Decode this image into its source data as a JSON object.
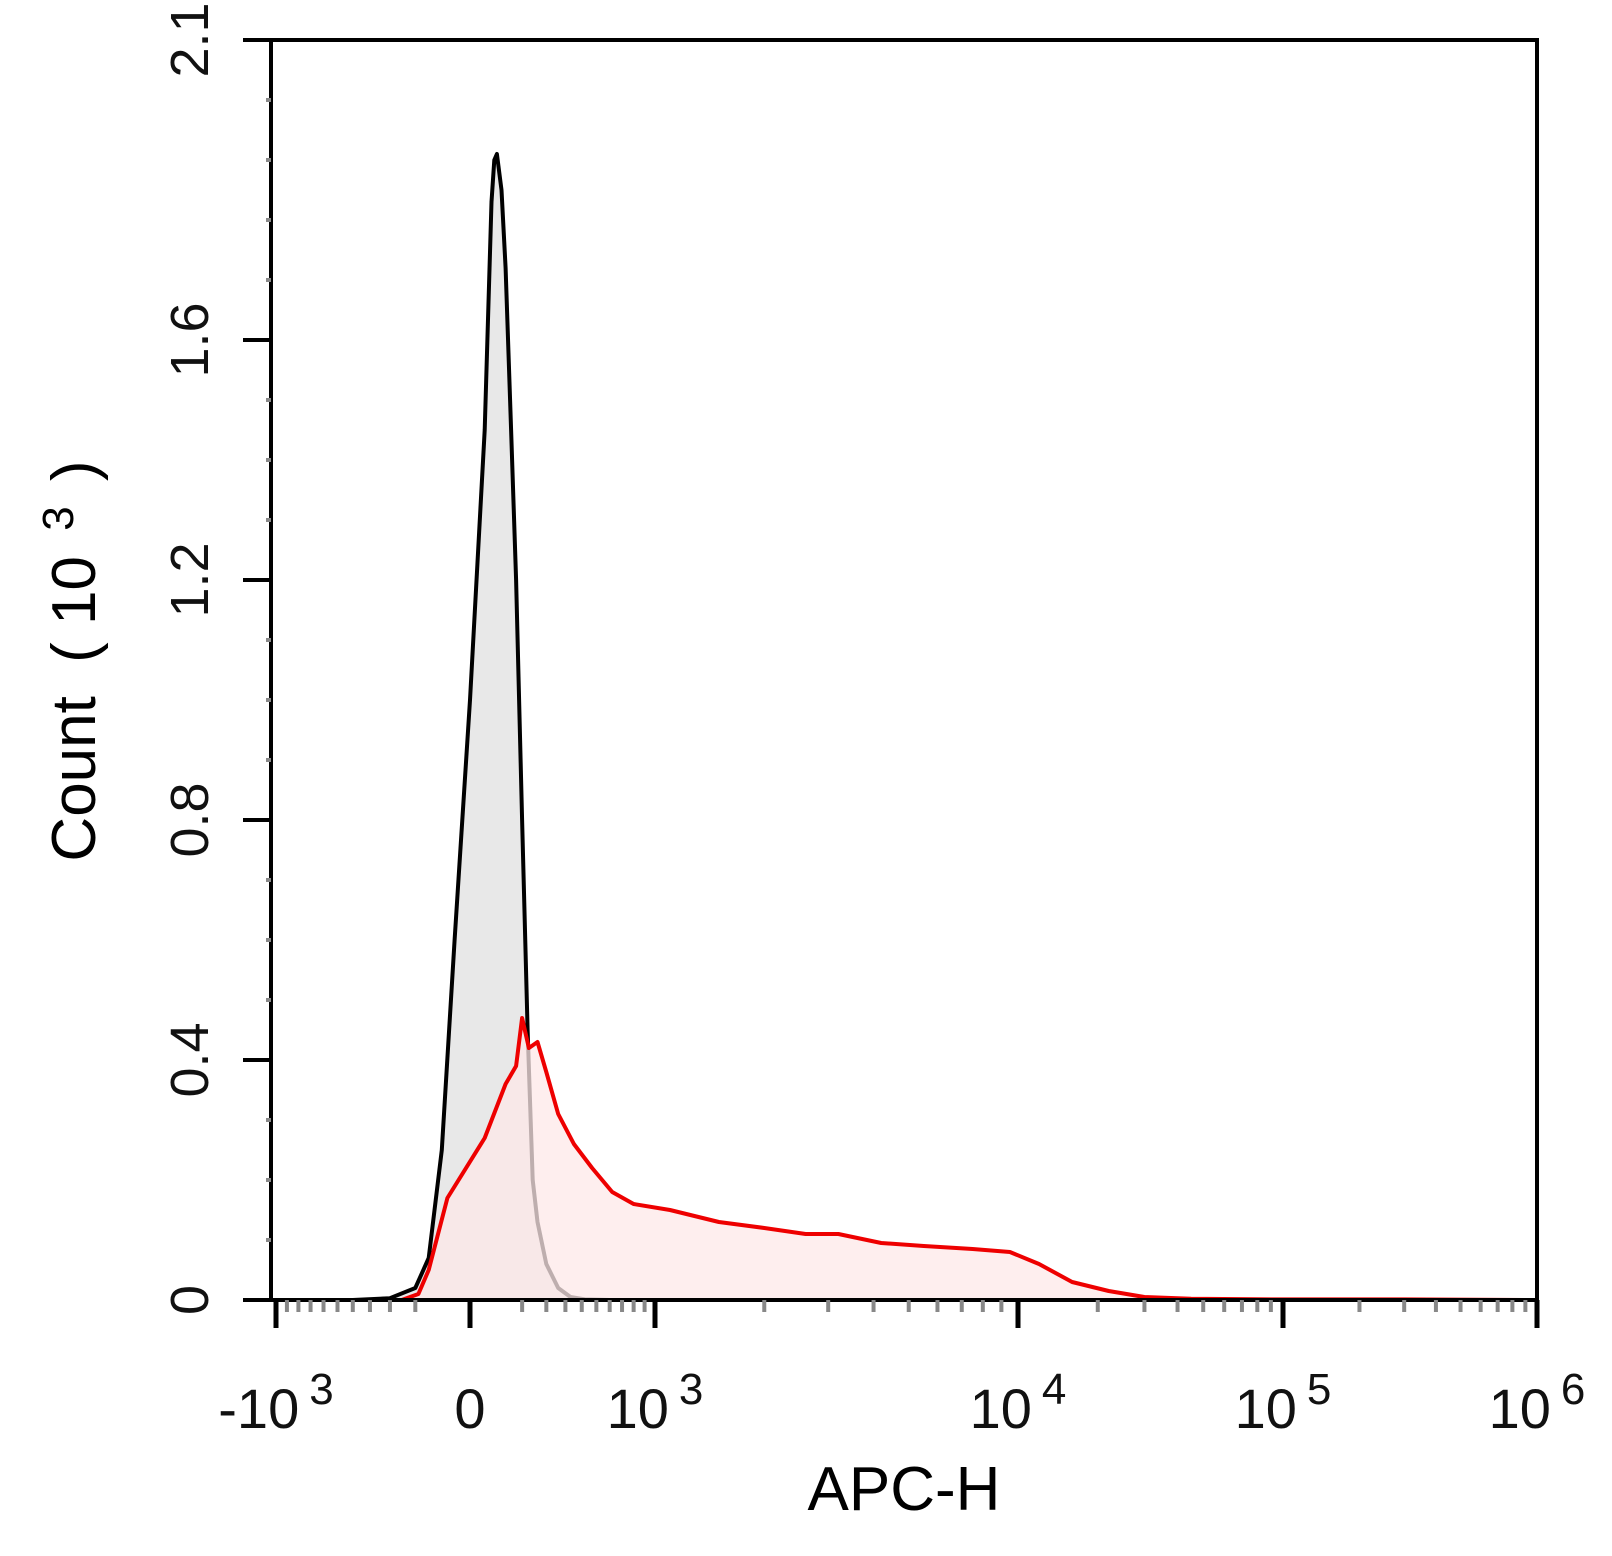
{
  "chart_data": {
    "type": "area",
    "xlabel": "APC-H",
    "ylabel": {
      "base": "Count",
      "paren_open": "(",
      "mantissa": "10",
      "exponent": "3",
      "paren_close": ")"
    },
    "x_scale": "biexponential",
    "x_ticks": [
      {
        "value": -1000,
        "base": "-10",
        "exp": "3"
      },
      {
        "value": 0,
        "base": "0",
        "exp": ""
      },
      {
        "value": 1000,
        "base": "10",
        "exp": "3"
      },
      {
        "value": 10000,
        "base": "10",
        "exp": "4"
      },
      {
        "value": 100000,
        "base": "10",
        "exp": "5"
      },
      {
        "value": 1000000,
        "base": "10",
        "exp": "6"
      }
    ],
    "ylim": [
      0,
      2.1
    ],
    "y_ticks": [
      "0",
      "0.4",
      "0.8",
      "1.2",
      "1.6",
      "2.1"
    ],
    "y_tick_values": [
      0,
      0.4,
      0.8,
      1.2,
      1.6,
      2.1
    ],
    "colors": {
      "control_line": "#000000",
      "control_fill": "#e8e8e8",
      "sample_line": "#ee0000",
      "sample_fill": "#fde8e8",
      "minor_tick": "#888888"
    },
    "series": [
      {
        "key": "control",
        "points": [
          [
            -1000,
            0
          ],
          [
            -400,
            0
          ],
          [
            -200,
            0.003
          ],
          [
            -100,
            0.02
          ],
          [
            -60,
            0.07
          ],
          [
            -30,
            0.25
          ],
          [
            -10,
            0.6
          ],
          [
            0,
            1.0
          ],
          [
            10,
            1.45
          ],
          [
            20,
            1.83
          ],
          [
            25,
            1.9
          ],
          [
            30,
            1.91
          ],
          [
            40,
            1.85
          ],
          [
            50,
            1.72
          ],
          [
            65,
            1.45
          ],
          [
            80,
            1.2
          ],
          [
            100,
            0.8
          ],
          [
            120,
            0.45
          ],
          [
            140,
            0.2
          ],
          [
            160,
            0.13
          ],
          [
            200,
            0.06
          ],
          [
            260,
            0.02
          ],
          [
            330,
            0.005
          ],
          [
            420,
            0.001
          ],
          [
            600,
            0
          ]
        ]
      },
      {
        "key": "sample",
        "points": [
          [
            -1000,
            0
          ],
          [
            -150,
            0
          ],
          [
            -90,
            0.01
          ],
          [
            -60,
            0.05
          ],
          [
            -20,
            0.17
          ],
          [
            10,
            0.27
          ],
          [
            50,
            0.36
          ],
          [
            80,
            0.39
          ],
          [
            100,
            0.47
          ],
          [
            125,
            0.42
          ],
          [
            160,
            0.43
          ],
          [
            200,
            0.38
          ],
          [
            260,
            0.31
          ],
          [
            350,
            0.26
          ],
          [
            470,
            0.22
          ],
          [
            620,
            0.18
          ],
          [
            800,
            0.16
          ],
          [
            1100,
            0.15
          ],
          [
            1500,
            0.13
          ],
          [
            2000,
            0.12
          ],
          [
            2600,
            0.11
          ],
          [
            3200,
            0.11
          ],
          [
            4200,
            0.095
          ],
          [
            5500,
            0.09
          ],
          [
            7500,
            0.085
          ],
          [
            9500,
            0.08
          ],
          [
            12000,
            0.06
          ],
          [
            16000,
            0.03
          ],
          [
            22000,
            0.015
          ],
          [
            30000,
            0.005
          ],
          [
            45000,
            0.002
          ],
          [
            100000,
            0.001
          ],
          [
            300000,
            0.001
          ],
          [
            1000000,
            0
          ]
        ]
      }
    ]
  }
}
